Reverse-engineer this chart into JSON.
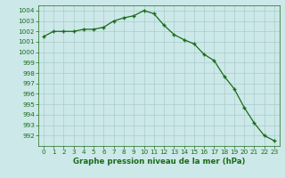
{
  "x": [
    0,
    1,
    2,
    3,
    4,
    5,
    6,
    7,
    8,
    9,
    10,
    11,
    12,
    13,
    14,
    15,
    16,
    17,
    18,
    19,
    20,
    21,
    22,
    23
  ],
  "y": [
    1001.5,
    1002.0,
    1002.0,
    1002.0,
    1002.2,
    1002.2,
    1002.4,
    1003.0,
    1003.3,
    1003.5,
    1004.0,
    1003.7,
    1002.6,
    1001.7,
    1001.2,
    1000.8,
    999.8,
    999.2,
    997.7,
    996.5,
    994.7,
    993.2,
    992.0,
    991.5
  ],
  "line_color": "#1a6b1a",
  "marker": "+",
  "marker_size": 3.5,
  "marker_linewidth": 1.0,
  "bg_color": "#cce8e8",
  "grid_color": "#aacccc",
  "axis_color": "#1a6b1a",
  "tick_color": "#1a6b1a",
  "label_color": "#1a6b1a",
  "xlabel": "Graphe pression niveau de la mer (hPa)",
  "ylim": [
    991.0,
    1004.5
  ],
  "xlim": [
    -0.5,
    23.5
  ],
  "yticks": [
    992,
    993,
    994,
    995,
    996,
    997,
    998,
    999,
    1000,
    1001,
    1002,
    1003,
    1004
  ],
  "xticks": [
    0,
    1,
    2,
    3,
    4,
    5,
    6,
    7,
    8,
    9,
    10,
    11,
    12,
    13,
    14,
    15,
    16,
    17,
    18,
    19,
    20,
    21,
    22,
    23
  ],
  "tick_fontsize": 5.2,
  "xlabel_fontsize": 6.2,
  "linewidth": 0.9
}
